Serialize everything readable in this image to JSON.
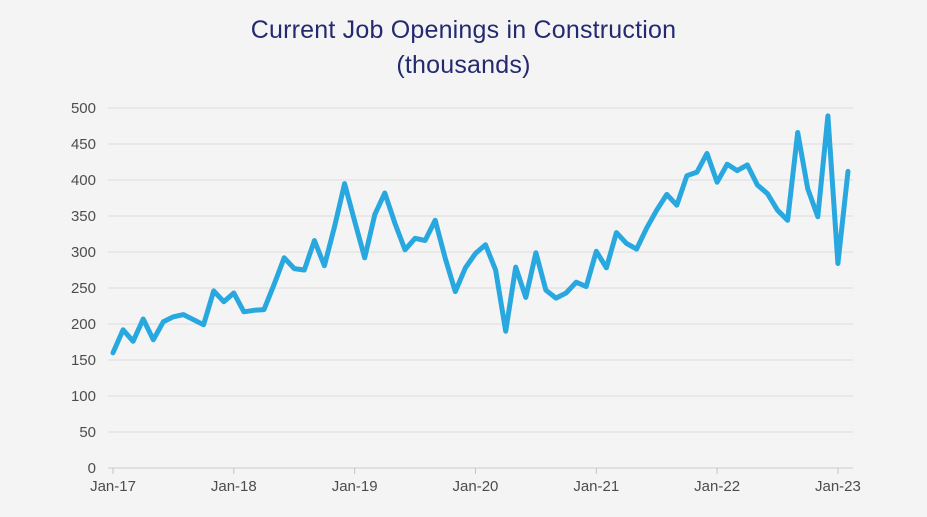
{
  "page": {
    "background": "#f4f4f5"
  },
  "chart": {
    "title_line1": "Current Job Openings in Construction",
    "title_line2": "(thousands)",
    "title_color": "#242a70"
  },
  "chart_data": {
    "type": "line",
    "title": "Current Job Openings in Construction (thousands)",
    "series_name": "Construction job openings (thousands)",
    "x": [
      "Jan-17",
      "Feb-17",
      "Mar-17",
      "Apr-17",
      "May-17",
      "Jun-17",
      "Jul-17",
      "Aug-17",
      "Sep-17",
      "Oct-17",
      "Nov-17",
      "Dec-17",
      "Jan-18",
      "Feb-18",
      "Mar-18",
      "Apr-18",
      "May-18",
      "Jun-18",
      "Jul-18",
      "Aug-18",
      "Sep-18",
      "Oct-18",
      "Nov-18",
      "Dec-18",
      "Jan-19",
      "Feb-19",
      "Mar-19",
      "Apr-19",
      "May-19",
      "Jun-19",
      "Jul-19",
      "Aug-19",
      "Sep-19",
      "Oct-19",
      "Nov-19",
      "Dec-19",
      "Jan-20",
      "Feb-20",
      "Mar-20",
      "Apr-20",
      "May-20",
      "Jun-20",
      "Jul-20",
      "Aug-20",
      "Sep-20",
      "Oct-20",
      "Nov-20",
      "Dec-20",
      "Jan-21",
      "Feb-21",
      "Mar-21",
      "Apr-21",
      "May-21",
      "Jun-21",
      "Jul-21",
      "Aug-21",
      "Sep-21",
      "Oct-21",
      "Nov-21",
      "Dec-21",
      "Jan-22",
      "Feb-22",
      "Mar-22",
      "Apr-22",
      "May-22",
      "Jun-22",
      "Jul-22",
      "Aug-22",
      "Sep-22",
      "Oct-22",
      "Nov-22",
      "Dec-22",
      "Jan-23",
      "Feb-23"
    ],
    "values": [
      160,
      192,
      176,
      207,
      178,
      203,
      210,
      213,
      206,
      199,
      246,
      231,
      243,
      217,
      219,
      220,
      255,
      292,
      277,
      275,
      316,
      281,
      335,
      395,
      343,
      292,
      352,
      382,
      340,
      303,
      319,
      316,
      344,
      291,
      245,
      278,
      298,
      310,
      275,
      190,
      279,
      237,
      299,
      247,
      236,
      243,
      258,
      252,
      301,
      278,
      327,
      312,
      304,
      333,
      358,
      380,
      365,
      406,
      411,
      437,
      397,
      422,
      413,
      421,
      393,
      381,
      358,
      344,
      466,
      388,
      349,
      489,
      284,
      412
    ],
    "ylim": [
      0,
      500
    ],
    "yticks": [
      0,
      50,
      100,
      150,
      200,
      250,
      300,
      350,
      400,
      450,
      500
    ],
    "xtick_labels": [
      "Jan-17",
      "Jan-18",
      "Jan-19",
      "Jan-20",
      "Jan-21",
      "Jan-22",
      "Jan-23"
    ],
    "grid": "horizontal",
    "legend": "none",
    "line_color": "#29a8e0",
    "line_width": 5,
    "grid_color": "#dcdcdc",
    "axis_line_color": "#cccccc",
    "tick_color": "#c2c2c2",
    "axis_text_color": "#4d4d4d"
  }
}
